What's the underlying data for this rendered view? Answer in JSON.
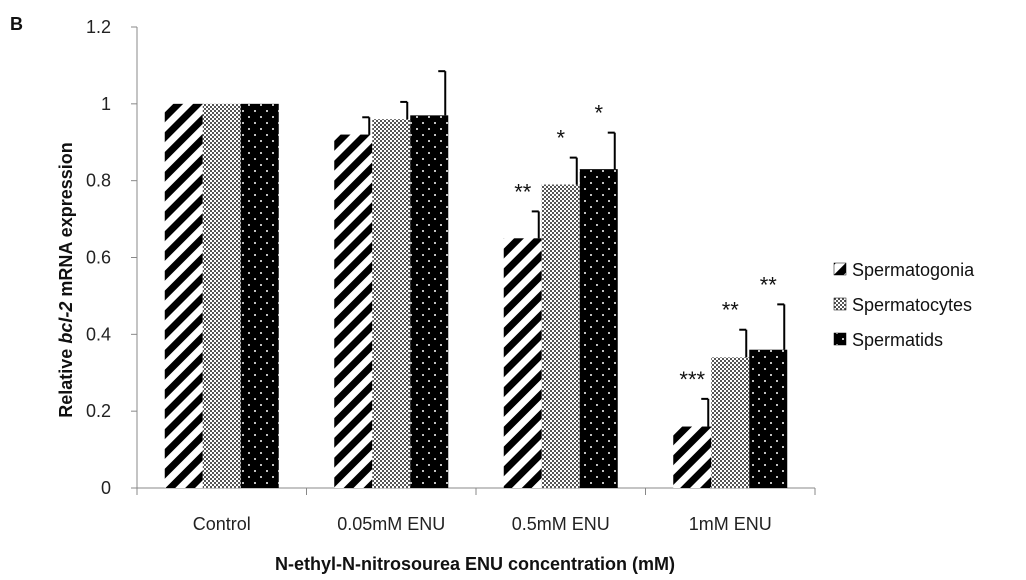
{
  "panel_label": "B",
  "chart_data": {
    "type": "bar",
    "title": "",
    "xlabel": "N-ethyl-N-nitrosourea ENU concentration (mM)",
    "ylabel_parts": [
      "Relative ",
      "bcl-2",
      "  mRNA expression"
    ],
    "ylim": [
      0,
      1.2
    ],
    "yticks": [
      "0",
      "0.2",
      "0.4",
      "0.6",
      "0.8",
      "1",
      "1.2"
    ],
    "categories": [
      "Control",
      "0.05mM ENU",
      "0.5mM ENU",
      "1mM ENU"
    ],
    "legend_position": "right",
    "grid": false,
    "series": [
      {
        "name": "Spermatogonia",
        "pattern": "diagonal-stripes",
        "values": [
          1.0,
          0.92,
          0.65,
          0.16
        ],
        "errors": [
          0.0,
          0.045,
          0.07,
          0.072
        ],
        "significance": [
          "",
          "",
          "**",
          "***"
        ]
      },
      {
        "name": "Spermatocytes",
        "pattern": "checkered",
        "values": [
          1.0,
          0.96,
          0.79,
          0.34
        ],
        "errors": [
          0.0,
          0.045,
          0.07,
          0.072
        ],
        "significance": [
          "",
          "",
          "*",
          "**"
        ]
      },
      {
        "name": "Spermatids",
        "pattern": "black-dots",
        "values": [
          1.0,
          0.97,
          0.83,
          0.36
        ],
        "errors": [
          0.0,
          0.115,
          0.095,
          0.118
        ],
        "significance": [
          "",
          "",
          "*",
          "**"
        ]
      }
    ]
  }
}
